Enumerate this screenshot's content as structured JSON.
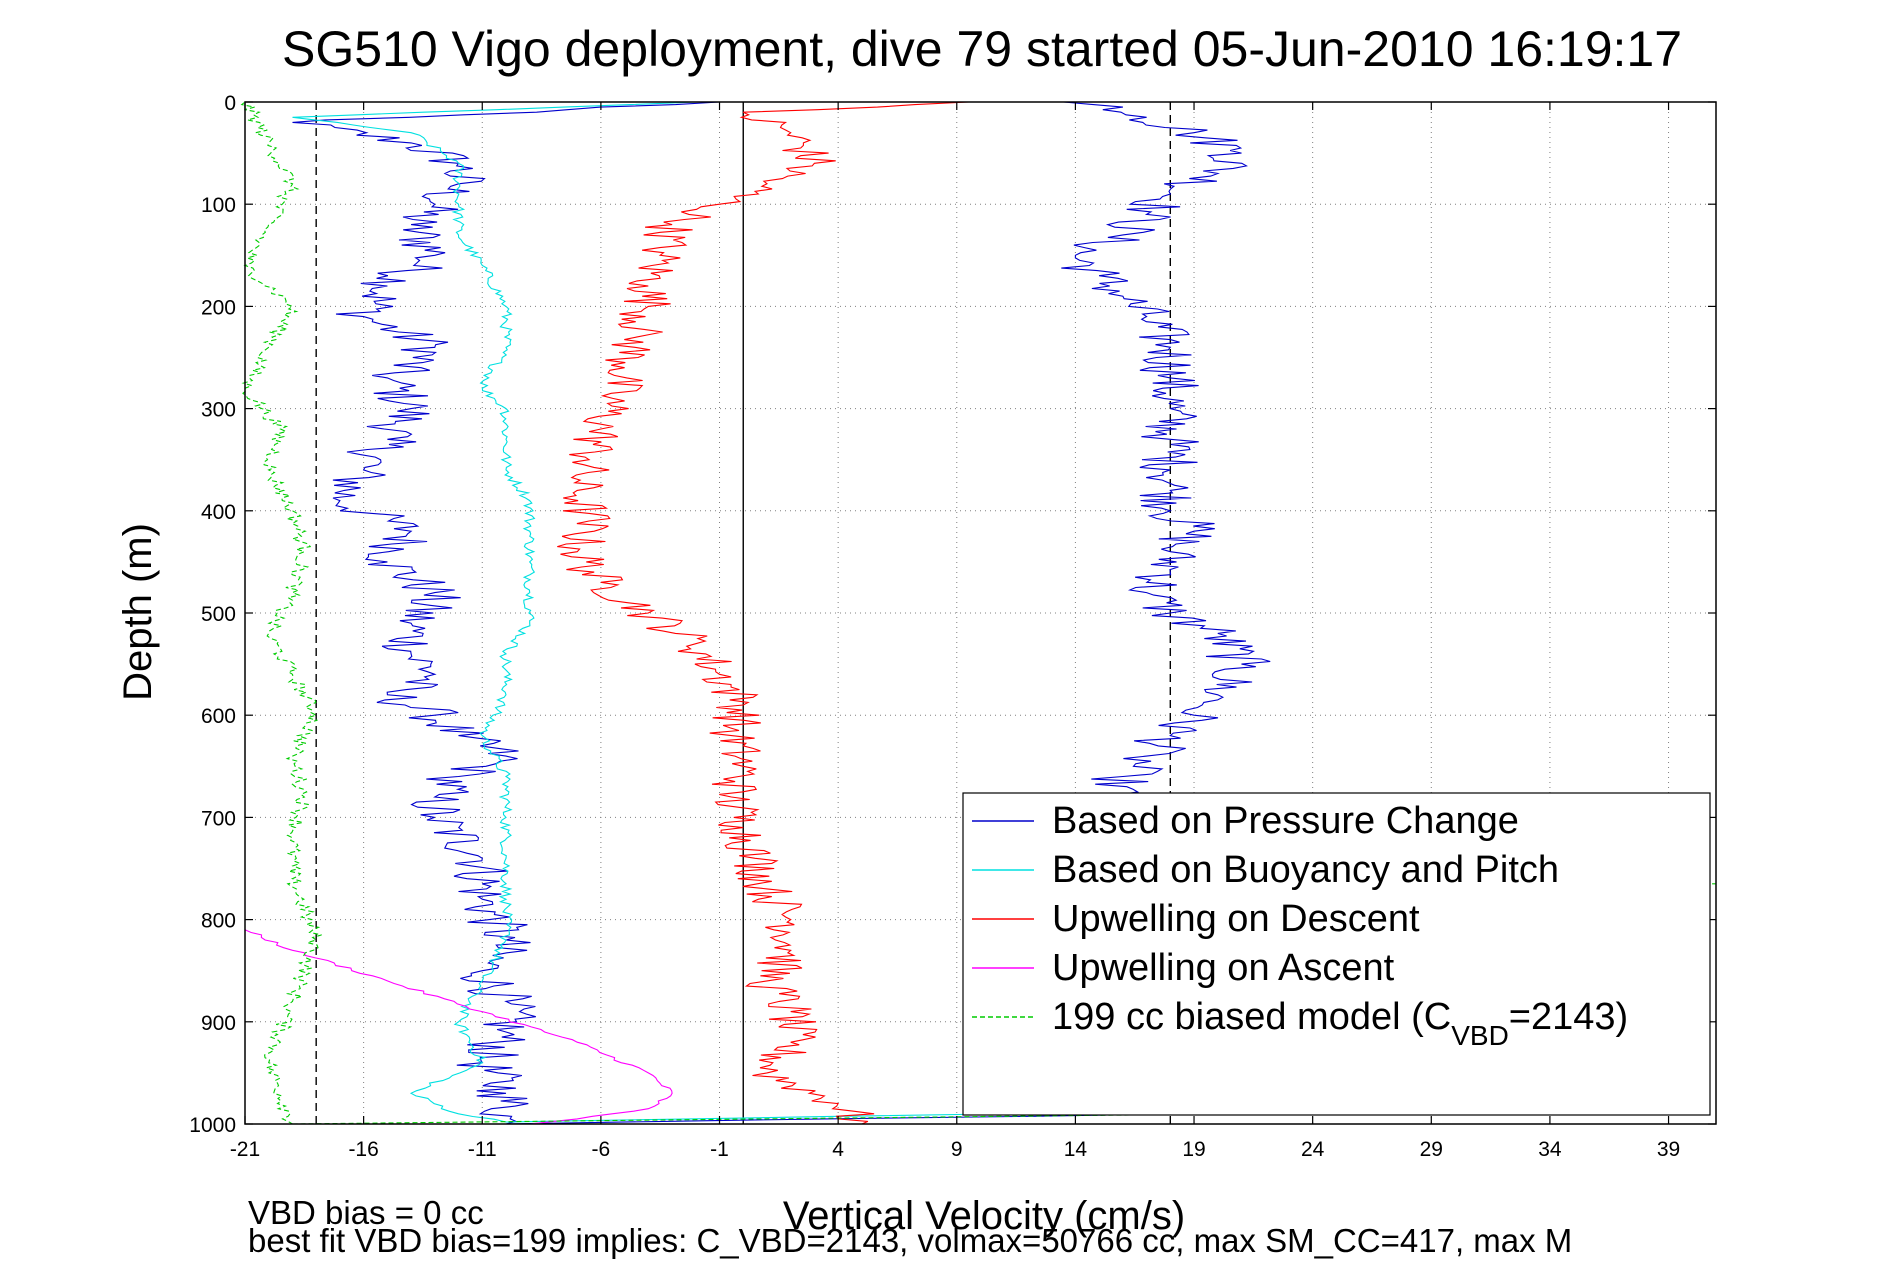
{
  "chart_data": {
    "type": "line",
    "title": "SG510 Vigo deployment, dive 79 started 05-Jun-2010 16:19:17",
    "xlabel": "Vertical Velocity (cm/s)",
    "ylabel": "Depth (m)",
    "xlim": [
      -21,
      41
    ],
    "ylim": [
      1000,
      0
    ],
    "y_reversed": true,
    "grid": true,
    "xticks": [
      -21,
      -16,
      -11,
      -6,
      -1,
      4,
      9,
      14,
      19,
      24,
      29,
      34,
      39
    ],
    "xtick_labels": [
      "-21",
      "-16",
      "-11",
      "-6",
      "-1",
      "4",
      "9",
      "14",
      "19",
      "24",
      "29",
      "34",
      "39"
    ],
    "yticks": [
      0,
      100,
      200,
      300,
      400,
      500,
      600,
      700,
      800,
      900,
      1000
    ],
    "ytick_labels": [
      "0",
      "100",
      "200",
      "300",
      "400",
      "500",
      "600",
      "700",
      "800",
      "900",
      "1000"
    ],
    "legend_position": "bottom-right",
    "reference_lines": [
      {
        "x": -18,
        "style": "dashed",
        "color": "#000000"
      },
      {
        "x": 0,
        "style": "solid",
        "color": "#000000"
      },
      {
        "x": 18,
        "style": "dashed",
        "color": "#000000"
      }
    ],
    "series": [
      {
        "name": "Based on Pressure Change",
        "legend_label": "Based on Pressure Change",
        "color": "#0000cc",
        "segments": [
          {
            "x": [
              -1,
              -19,
              -14,
              -12,
              -12,
              -13,
              -14,
              -13,
              -15,
              -16,
              -13,
              -15,
              -14,
              -15,
              -16,
              -17,
              -14,
              -15,
              -13,
              -14,
              -14,
              -13,
              -15,
              -13,
              -12,
              -10,
              -12,
              -13,
              -13,
              -11,
              -11,
              -10,
              -11,
              -10,
              -10,
              -11,
              -10,
              -10
            ],
            "y": [
              0,
              20,
              40,
              60,
              80,
              100,
              120,
              150,
              180,
              210,
              240,
              270,
              300,
              330,
              360,
              390,
              420,
              450,
              480,
              510,
              540,
              560,
              580,
              600,
              620,
              640,
              660,
              680,
              700,
              740,
              780,
              820,
              850,
              880,
              910,
              940,
              970,
              1000
            ]
          },
          {
            "x": [
              13.5,
              16,
              17,
              19,
              21,
              20,
              18,
              17,
              16,
              14,
              15,
              16,
              17,
              18,
              18,
              18,
              18,
              18,
              18,
              18,
              19,
              18,
              18,
              17,
              18,
              20,
              21,
              20,
              19,
              18,
              17,
              16,
              15.5
            ],
            "y": [
              0,
              5,
              15,
              30,
              50,
              70,
              90,
              110,
              130,
              150,
              170,
              190,
              210,
              240,
              270,
              300,
              330,
              360,
              380,
              400,
              420,
              440,
              460,
              480,
              500,
              520,
              550,
              580,
              600,
              620,
              640,
              660,
              680
            ]
          },
          {
            "x": [
              -10,
              18
            ],
            "y": [
              1000,
              990
            ]
          }
        ]
      },
      {
        "name": "Based on Buoyancy and Pitch",
        "legend_label": "Based on Buoyancy and Pitch",
        "color": "#00e0e0",
        "segments": [
          {
            "x": [
              -2,
              -19,
              -14,
              -12,
              -12,
              -12,
              -11,
              -10,
              -10,
              -11,
              -10,
              -10,
              -10,
              -9,
              -9,
              -9,
              -9,
              -9,
              -10,
              -10,
              -11,
              -10,
              -10,
              -10,
              -10,
              -10,
              -11,
              -12,
              -11,
              -14,
              -12,
              -10,
              24
            ],
            "y": [
              0,
              15,
              30,
              60,
              100,
              130,
              160,
              200,
              240,
              280,
              300,
              330,
              360,
              390,
              420,
              450,
              480,
              510,
              540,
              580,
              620,
              660,
              700,
              740,
              780,
              820,
              860,
              900,
              940,
              970,
              990,
              998,
              985
            ]
          }
        ]
      },
      {
        "name": "Upwelling on Descent",
        "legend_label": "Upwelling on Descent",
        "color": "#ff0000",
        "segments": [
          {
            "x": [
              9.5,
              0,
              2,
              3,
              1,
              -1,
              -3,
              -3.5,
              -4,
              -4,
              -4.5,
              -5,
              -5.5,
              -6,
              -6.5,
              -7,
              -6.5,
              -7,
              -6,
              -4,
              -2,
              -1,
              0,
              -0.5,
              0,
              -0.5,
              0,
              0.5,
              1,
              2,
              2,
              1,
              2,
              2,
              1,
              4,
              5
            ],
            "y": [
              0,
              10,
              30,
              60,
              80,
              100,
              120,
              150,
              180,
              200,
              230,
              260,
              290,
              320,
              350,
              380,
              410,
              440,
              470,
              500,
              530,
              560,
              590,
              620,
              650,
              680,
              710,
              740,
              770,
              800,
              830,
              860,
              890,
              920,
              950,
              980,
              1000
            ]
          }
        ]
      },
      {
        "name": "Upwelling on Ascent",
        "legend_label": "Upwelling on Ascent",
        "color": "#ff00ff",
        "segments": [
          {
            "x": [
              -21,
              -19,
              -15,
              -11,
              -7,
              -4,
              -3,
              -4,
              -7,
              -9
            ],
            "y": [
              810,
              830,
              860,
              890,
              920,
              950,
              970,
              985,
              995,
              1000
            ]
          }
        ]
      },
      {
        "name": "199 cc biased model",
        "legend_label": "199 cc biased model (C",
        "legend_subscript": "VBD",
        "legend_suffix": "=2143)",
        "color": "#00cc00",
        "style": "dashed",
        "segments": [
          {
            "x": [
              41,
              -21,
              -20,
              -19,
              -20,
              -21,
              -19,
              -20,
              -21,
              -19.5,
              -20,
              -19,
              -18.5,
              -19,
              -20,
              -19,
              -18,
              -19,
              -18.5,
              -19,
              -19,
              -18,
              -19,
              -20,
              -19
            ],
            "y": [
              0,
              0,
              40,
              80,
              120,
              160,
              200,
              240,
              280,
              320,
              360,
              400,
              440,
              480,
              520,
              560,
              600,
              640,
              680,
              720,
              760,
              820,
              880,
              940,
              1000
            ]
          },
          {
            "x": [
              -19,
              21
            ],
            "y": [
              1000,
              990
            ]
          },
          {
            "x": [
              40.5,
              41
            ],
            "y": [
              765,
              765
            ]
          }
        ]
      }
    ]
  },
  "annotations": {
    "bias_label": "VBD bias = 0 cc",
    "fit_summary": "best fit VBD bias=199 implies: C_VBD=2143, volmax=50766 cc, max SM_CC=417, max M"
  }
}
